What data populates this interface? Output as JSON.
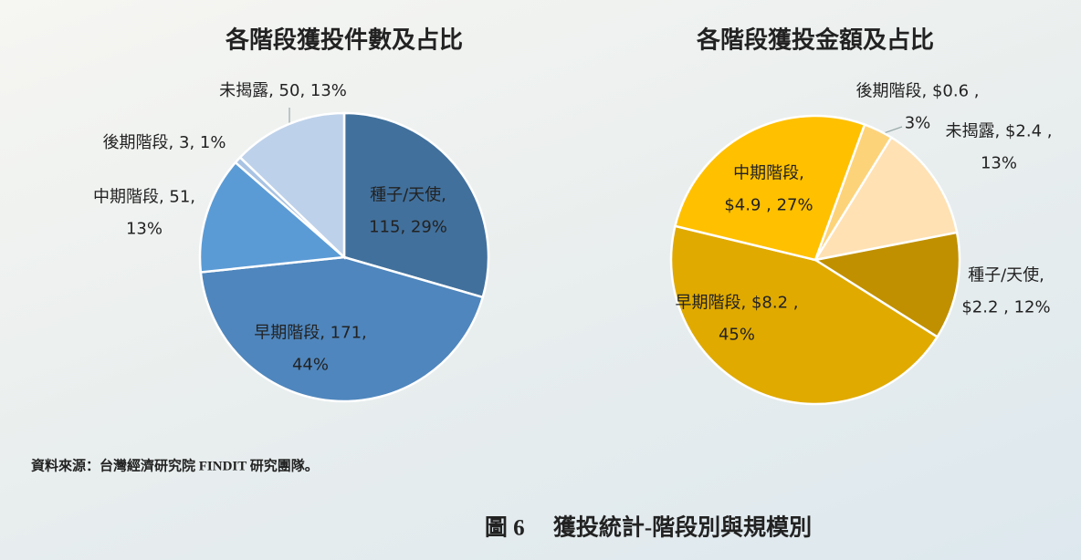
{
  "chart_data": [
    {
      "type": "pie",
      "title": "各階段獲投件數及占比",
      "labels": [
        "種子/天使,\n115, 29%",
        "早期階段, 171,\n44%",
        "中期階段, 51,\n13%",
        "後期階段, 3, 1%",
        "未揭露, 50, 13%"
      ],
      "values": [
        115,
        171,
        51,
        3,
        50
      ],
      "colors": [
        "#41709c",
        "#4f86bd",
        "#5b9bd5",
        "#a9c3e3",
        "#bdd1ea"
      ]
    },
    {
      "type": "pie",
      "title": "各階段獲投金額及占比",
      "labels": [
        "後期階段, $0.6 ,\n3%",
        "未揭露, $2.4 ,\n13%",
        "種子/天使,\n$2.2 , 12%",
        "早期階段, $8.2 ,\n45%",
        "中期階段,\n$4.9 , 27%"
      ],
      "values": [
        0.6,
        2.4,
        2.2,
        8.2,
        4.9
      ],
      "colors": [
        "#fdd37a",
        "#ffe1b3",
        "#c09000",
        "#e0aa00",
        "#ffc000"
      ]
    }
  ],
  "source": "資料來源：台灣經濟研究院 FINDIT 研究團隊。",
  "caption": "圖 6　 獲投統計-階段別與規模別"
}
